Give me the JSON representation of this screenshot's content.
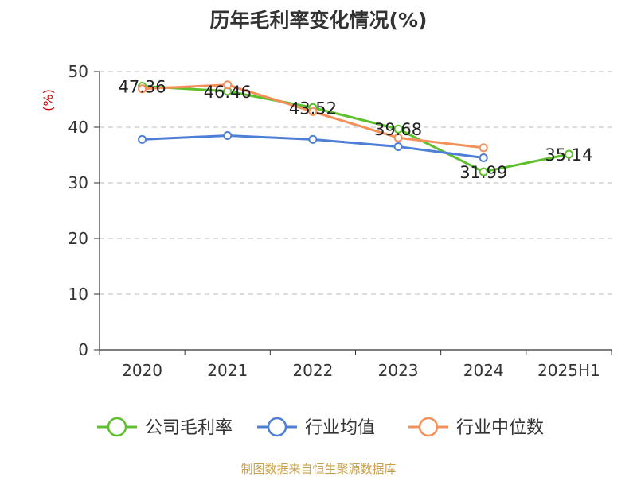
{
  "chart_data": {
    "type": "line",
    "title": "历年毛利率变化情况(%)",
    "ylabel": "(%)",
    "xlabel": "",
    "categories": [
      "2020",
      "2021",
      "2022",
      "2023",
      "2024",
      "2025H1"
    ],
    "ylim": [
      0,
      50
    ],
    "yticks": [
      0,
      10,
      20,
      30,
      40,
      50
    ],
    "grid": true,
    "legend_position": "bottom",
    "series": [
      {
        "name": "公司毛利率",
        "color": "#5dc02c",
        "values": [
          47.36,
          46.46,
          43.52,
          39.68,
          31.99,
          35.14
        ],
        "labels": [
          "47.36",
          "46.46",
          "43.52",
          "39.68",
          "31.99",
          "35.14"
        ]
      },
      {
        "name": "行业均值",
        "color": "#4d7fd6",
        "values": [
          37.8,
          38.5,
          37.8,
          36.5,
          34.5,
          null
        ]
      },
      {
        "name": "行业中位数",
        "color": "#f5905a",
        "values": [
          46.9,
          47.6,
          42.8,
          38.1,
          36.3,
          null
        ]
      }
    ]
  },
  "colors": {
    "title": "#333333",
    "ylabel": "#cc0000",
    "source": "#c8a04a",
    "axis": "#333333",
    "grid": "#bbbbbb"
  },
  "source": "制图数据来自恒生聚源数据库"
}
